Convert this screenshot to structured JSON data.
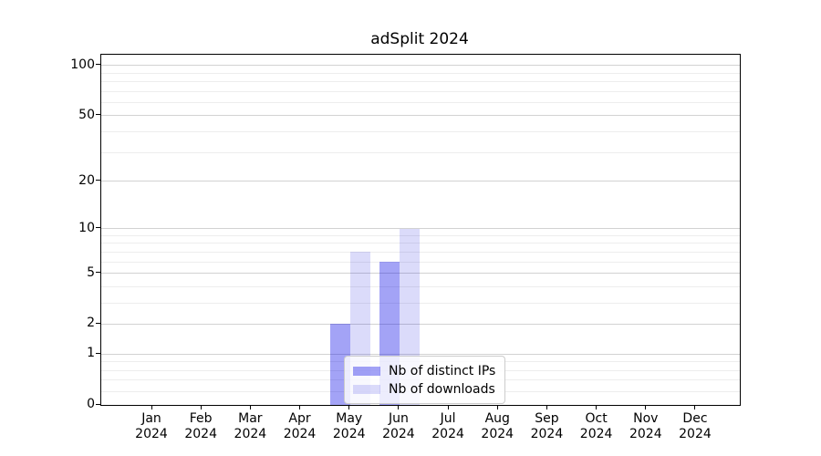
{
  "title": "adSplit 2024",
  "chart_data": {
    "type": "bar",
    "title": "adSplit 2024",
    "categories": [
      "Jan 2024",
      "Feb 2024",
      "Mar 2024",
      "Apr 2024",
      "May 2024",
      "Jun 2024",
      "Jul 2024",
      "Aug 2024",
      "Sep 2024",
      "Oct 2024",
      "Nov 2024",
      "Dec 2024"
    ],
    "x_tick_months": [
      "Jan",
      "Feb",
      "Mar",
      "Apr",
      "May",
      "Jun",
      "Jul",
      "Aug",
      "Sep",
      "Oct",
      "Nov",
      "Dec"
    ],
    "x_tick_year": "2024",
    "series": [
      {
        "name": "Nb of distinct IPs",
        "color": "rgba(0,0,230,0.36)",
        "values": [
          0,
          0,
          0,
          0,
          2,
          6,
          0,
          0,
          0,
          0,
          0,
          0
        ]
      },
      {
        "name": "Nb of downloads",
        "color": "rgba(0,0,220,0.14)",
        "values": [
          0,
          0,
          0,
          0,
          7,
          10,
          0,
          0,
          0,
          0,
          0,
          0
        ]
      }
    ],
    "xlabel": "",
    "ylabel": "",
    "y_scale": "log1p",
    "y_ticks": [
      0,
      1,
      2,
      5,
      10,
      20,
      50,
      100
    ],
    "y_minor_ticks": [
      0.2,
      0.4,
      0.6,
      0.8,
      3,
      4,
      6,
      7,
      8,
      9,
      30,
      40,
      60,
      70,
      80,
      90
    ],
    "ylim": [
      0,
      116
    ],
    "grid": "horizontal",
    "legend_position": "lower center"
  },
  "colors": {
    "background": "#ffffff",
    "spine": "#000000",
    "grid_major": "#d2d2d2",
    "grid_minor": "#ededed",
    "text": "#000000",
    "legend_border": "#cccccc",
    "legend_background": "rgba(255,255,255,0.8)"
  }
}
